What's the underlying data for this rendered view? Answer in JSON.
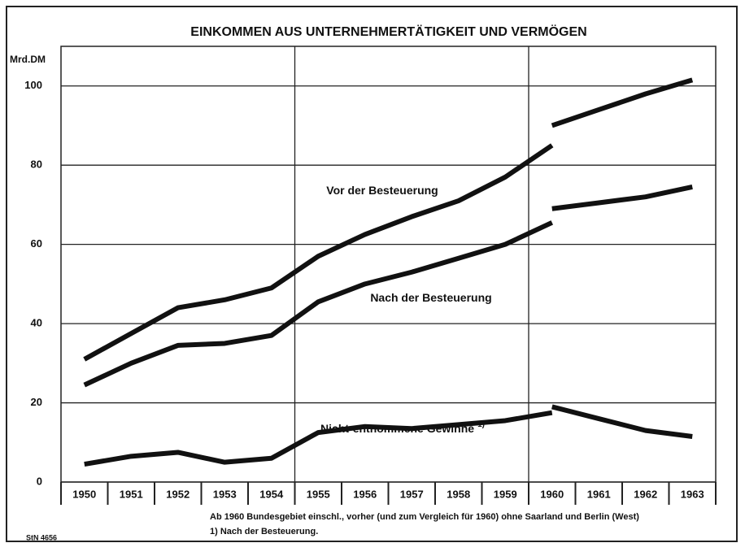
{
  "chart_data": {
    "type": "line",
    "title": "EINKOMMEN AUS UNTERNEHMERTÄTIGKEIT UND VERMÖGEN",
    "y_label": "Mrd.DM",
    "categories": [
      "1950",
      "1951",
      "1952",
      "1953",
      "1954",
      "1955",
      "1956",
      "1957",
      "1958",
      "1959",
      "1960",
      "1961",
      "1962",
      "1963"
    ],
    "ylim": [
      0,
      110
    ],
    "yticks": [
      0,
      20,
      40,
      60,
      80,
      100
    ],
    "grid": true,
    "series": [
      {
        "name": "Vor der Besteuerung",
        "color": "#111111",
        "values": [
          31,
          37.5,
          44,
          46,
          49,
          57,
          62.5,
          67,
          71,
          77,
          85,
          null,
          null,
          null
        ]
      },
      {
        "color": "#111111",
        "values": [
          null,
          null,
          null,
          null,
          null,
          null,
          null,
          null,
          null,
          null,
          90,
          94,
          98,
          101.5
        ]
      },
      {
        "name": "Nach der Besteuerung",
        "color": "#111111",
        "values": [
          24.5,
          30,
          34.5,
          35,
          37,
          45.5,
          50,
          53,
          56.5,
          60,
          65.5,
          null,
          null,
          null
        ]
      },
      {
        "color": "#111111",
        "values": [
          null,
          null,
          null,
          null,
          null,
          null,
          null,
          null,
          null,
          null,
          69,
          70.5,
          72,
          74.5
        ]
      },
      {
        "name": "Nicht-entnommene Gewinne",
        "footnote_ref": "1)",
        "color": "#111111",
        "values": [
          4.5,
          6.5,
          7.5,
          5,
          6,
          12.5,
          14,
          13.5,
          14.5,
          15.5,
          17.5,
          null,
          null,
          null
        ]
      },
      {
        "color": "#111111",
        "values": [
          null,
          null,
          null,
          null,
          null,
          null,
          null,
          null,
          null,
          null,
          19,
          16,
          13,
          11.5
        ]
      }
    ],
    "notes": [
      "Ab 1960 Bundesgebiet einschl., vorher (und zum Vergleich für 1960) ohne Saarland und Berlin (West)",
      "1) Nach der Besteuerung."
    ],
    "source": "StN 4656"
  }
}
